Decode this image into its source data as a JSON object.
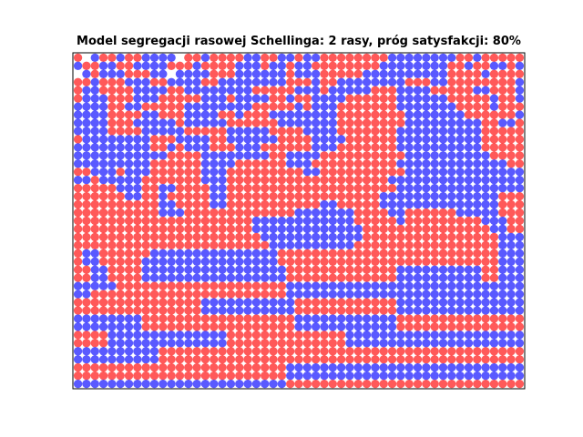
{
  "chart_data": {
    "type": "scatter",
    "title": "Model segregacji rasowej Schellinga: 2 rasy, próg satysfakcji: 80%",
    "xlabel": "",
    "ylabel": "",
    "grid": false,
    "axis_ticks": false,
    "xlim": [
      0,
      55
    ],
    "ylim": [
      0,
      41
    ],
    "series": [
      {
        "color": "#ff0000",
        "alpha": 0.65
      },
      {
        "color": "#0000ff",
        "alpha": 0.65
      }
    ],
    "grid_rows": [
      "R.BRRBRRBBBB.RRBRRRRBBRRBBRBBRRRRRRRRBBBBBBBBRRBRRRRR",
      "BRRBBRRBBBBRRRBRRRRBBBRBBRBBRRRRRRRRBBBBBBBBRRBRRBBRB",
      ".BRBBBRRRBB.BBBBRRRBBBBBBRBBBRRRRRBBBBBBBBBBRRRRBRRRR",
      "RRBRRRBBBRRBBBBRRBBBBBBBBRRRBRRBBBBBBBBRRRBBRRRRRRRRB",
      "RBBRRRRBBBBRRBBBBBBBBRRRRRBBBRBBBBBRRRBBBBRRRRRBBRRRB",
      "RBBBRRRBBBRRRRRBBBRBBBBRRBRRBBBBRRRRRRBBBBBBRRRRRBRRB",
      "BBBBRRBBRRRRRBBBBBBBBRRRRRBRBBBRRRRRRRBBBBBBBRRRRBRRR",
      "BBBBRRRRBBRRRBBBBRRBRRRBBBBBBBBRRRRRRRRBBBBBBBRRRRRRB",
      "BBBBRRRBBBBBRBBBBBRRRRRRBBBBBBBRRRRRRRRBBBBBBBBBRRBBR",
      "BBBBRRRRBBBBBRRRRRBBBBBRRRRBBBBRRRRRRRBBBBBBBBBBRRRRR",
      "RBBBBBBBBRRRBBBBRRBBBBBBRRRRBBBBRRRRRRBBBBBBBBBBRRRRR",
      "BBBBBBBBBRRBRBBBRRRBBBRRRRRRBBBRRRRRRRBBBBBBBBBBRRRRR",
      "BBBBBBBBBBBRRRRBBBBBBBBRRBBBBRRRRRRRRRRBBBBBBBBBBRRRR",
      "BBBBBBBBBRRRRRRBBBBRRRRRRBBBRRRRRRRRRRBBBBBBBBBBBBBRR",
      "RRBBBRBBBRRRRRRBBBRRRRRRRRRBBRRRRRRRRRRBBBBBBBBBBBBBB",
      "BBRBBBBBRRRRRRRBBBRRRRRRRRRRRRRRRRRRRBBBBBBBBBBBBBBBB",
      "RRRRRBBBRRBBRRRRBBRRRRRRRRRRRRRRRRRRRRBBBBBBBBBBBBBBB",
      "RRRRRRBBRRBRRRRRBBRRRRRRRRRRRRRRRRRRBBBBBBBBBBBBBBRRR",
      "RRRRRRRRRRBBRRRRBBRRRRRRRRRRRBBRRRRRBBBBBBBBBBBBBBRRR",
      "RRRRRRRRRRBBBRRRRRRRRRRRRRBBBBBBBRRRRBBRRRRRRBBBBBRRR",
      "RRRRRRRRRRRRRRRRRRRRRBBBBBBBBBBBBRRRRRBRRRRRRRRRBBBRR",
      "RRRRRRRRRRRRRRRRRRRRRBBBBBBBBBBBBBRRRRRRRRRRRRRRRBBRR",
      "RRRRRRRRRRRRRRRRRRRRRRBBBBBBBBBBBBRRRRRRRRRRRRRRRRBBB",
      "RRRRRRRRRRRRRRRRRRRRRRRBBBBBBBBBBRRRRRRRRRRRRRRRRRBBB",
      "RBBRRRRRRBBBBBBBBBBBBBBBRRRRRRRRRRRRRRRRRRRRRRRRRRBBB",
      "RBBRRRRRBBBBBBBBBBBBBBBBRRRRRRRRRRRRRRRRRRRRRRRRRRBBB",
      "RRBBRRRRBBBBBBBBBBBBBBBBBRRRRRRRRRRRRRBBBBBBBBBBRRBBB",
      "RRBBRRRRBBBBBBBBBBBBBBBBBRRRRRRRRRRRRRBBBBBBBBBBRRBBB",
      "BBBBBRRRRRRRRRRRRRRRRRRRRBBBBBBBBBBBBBBBBBBBBBBBBBBBB",
      "BBRRRRRRRRRRRRRRRRRRRRRRRBBBBBBBBBBBBBBBBBBBBBBBBBBBB",
      "RRRRRRRRRRRRRRRBBBBBBBBBBBRRRRRRRRRRRRBBBBBBBBBBBBBBB",
      "RRRRRRRRRRRRRRRBBBBBBBBBBBRRRRRRRRRRRRBBBBBBBBBBBBBBB",
      "BBBBBBBBRRRRRRRRRRRRRRRRRRBBBBBBBBBBBBRRRRRRRRRRRRRRR",
      "BBBBBBBBRRRRRRRRRRRRRRRRRRBBBBBBBBBBBBRRRRRRRRRRRRRRR",
      "RRRRBBBBBBBBBBBBBBRRRRRRRRRRRRRRBBBBBBBBBBBBBBBBBBBBB",
      "RRRRBBBBBBBBBBBBBBRRRRRRRRRRRRRRBBBBBBBBBBBBBBBBBBBBB",
      "BBBBBBBBBBRRRRRRRRRRRRRRRRRRRRRRRRRRRRRRRRRRRRRRRRRRR",
      "BBBBBBBBBBRRRRRRRRRRRRRRRRRRRRRRRRRRRRRRRRRRRRRRRRRRR",
      "RRRRRRRRRRRRRRRRRRRRRRRRRBBBBBBBBBBBBBBBBBBBBBBBBBBBB",
      "RRRRRRRRRRRRRRRRRRRRRRRRRBBBBBBBBBBBBBBBBBBBBBBBBBBBB",
      "BBBBBBBBBBBBBBBBBBBBBBBBBRRRRRRRRRRRRRRRRRRRRRRRRRRRR"
    ]
  }
}
